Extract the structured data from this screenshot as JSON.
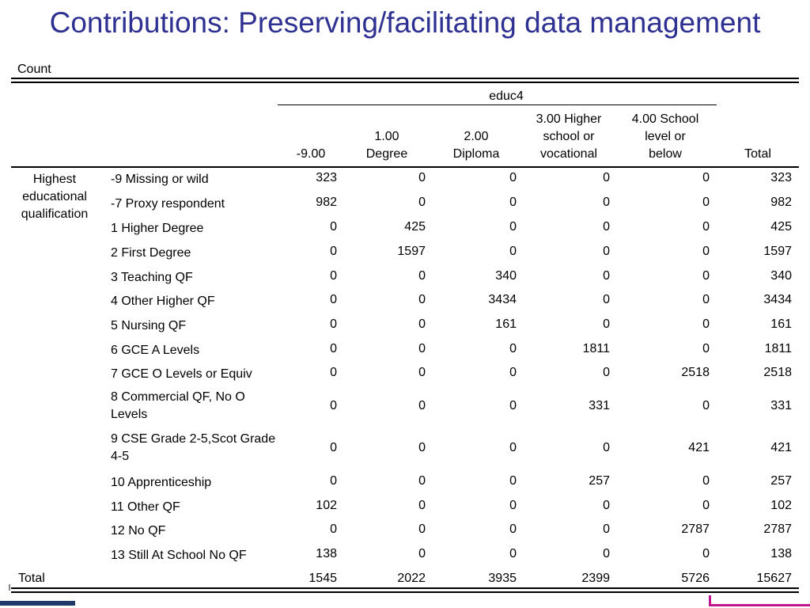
{
  "title": "Contributions: Preserving/facilitating data management",
  "table": {
    "count_label": "Count",
    "column_group": "educ4",
    "columns": [
      {
        "lines": [
          "-9.00"
        ]
      },
      {
        "lines": [
          "1.00",
          "Degree"
        ]
      },
      {
        "lines": [
          "2.00",
          "Diploma"
        ]
      },
      {
        "lines": [
          "3.00  Higher",
          "school or",
          "vocational"
        ]
      },
      {
        "lines": [
          "4.00  School",
          "level or",
          "below"
        ]
      },
      {
        "lines": [
          "Total"
        ]
      }
    ],
    "row_group": [
      "Highest",
      "educational",
      "qualification"
    ],
    "rows": [
      {
        "label": "-9  Missing or wild",
        "values": [
          "323",
          "0",
          "0",
          "0",
          "0",
          "323"
        ]
      },
      {
        "label": "-7  Proxy respondent",
        "values": [
          "982",
          "0",
          "0",
          "0",
          "0",
          "982"
        ]
      },
      {
        "label": "1  Higher Degree",
        "values": [
          "0",
          "425",
          "0",
          "0",
          "0",
          "425"
        ]
      },
      {
        "label": "2  First Degree",
        "values": [
          "0",
          "1597",
          "0",
          "0",
          "0",
          "1597"
        ]
      },
      {
        "label": "3  Teaching QF",
        "values": [
          "0",
          "0",
          "340",
          "0",
          "0",
          "340"
        ]
      },
      {
        "label": "4  Other Higher QF",
        "values": [
          "0",
          "0",
          "3434",
          "0",
          "0",
          "3434"
        ]
      },
      {
        "label": "5  Nursing QF",
        "values": [
          "0",
          "0",
          "161",
          "0",
          "0",
          "161"
        ]
      },
      {
        "label": "6  GCE A Levels",
        "values": [
          "0",
          "0",
          "0",
          "1811",
          "0",
          "1811"
        ]
      },
      {
        "label": "7  GCE O Levels or Equiv",
        "values": [
          "0",
          "0",
          "0",
          "0",
          "2518",
          "2518"
        ]
      },
      {
        "label": "8  Commercial QF, No O Levels",
        "values": [
          "0",
          "0",
          "0",
          "331",
          "0",
          "331"
        ]
      },
      {
        "label": "9  CSE Grade 2-5,Scot Grade 4-5",
        "values": [
          "0",
          "0",
          "0",
          "0",
          "421",
          "421"
        ]
      },
      {
        "label": "10  Apprenticeship",
        "values": [
          "0",
          "0",
          "0",
          "257",
          "0",
          "257"
        ]
      },
      {
        "label": "11  Other QF",
        "values": [
          "102",
          "0",
          "0",
          "0",
          "0",
          "102"
        ]
      },
      {
        "label": "12  No QF",
        "values": [
          "0",
          "0",
          "0",
          "0",
          "2787",
          "2787"
        ]
      },
      {
        "label": "13  Still At School No QF",
        "values": [
          "138",
          "0",
          "0",
          "0",
          "0",
          "138"
        ]
      }
    ],
    "total": {
      "label": "Total",
      "values": [
        "1545",
        "2022",
        "3935",
        "2399",
        "5726",
        "15627"
      ]
    }
  }
}
